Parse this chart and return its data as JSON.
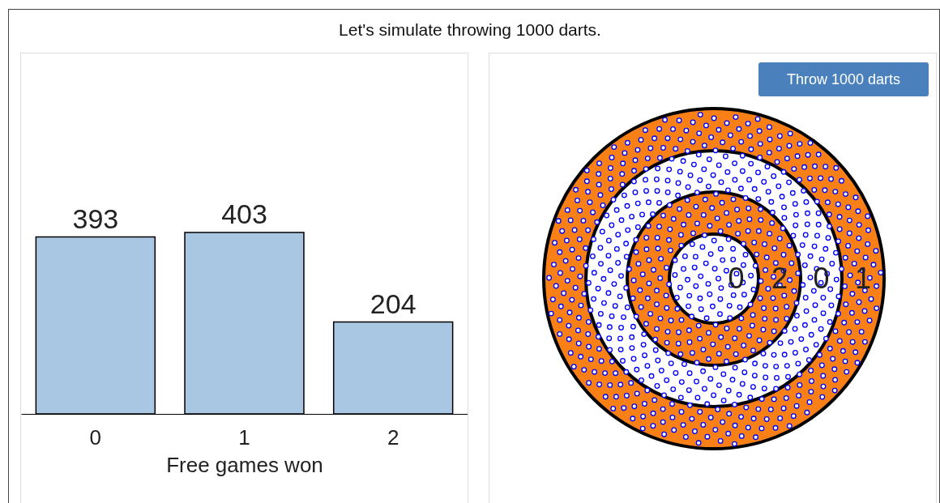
{
  "chart_data": [
    {
      "type": "bar",
      "title": "Let's simulate throwing 1000 darts.",
      "xlabel": "Free games won",
      "categories": [
        "0",
        "1",
        "2"
      ],
      "values": [
        393,
        403,
        204
      ],
      "color": "#a9c6e2",
      "data_labels": true,
      "tick_labels": "x"
    },
    {
      "type": "other",
      "annotations": [
        "Throw 1000 darts",
        "0",
        "2",
        "0",
        "1"
      ]
    }
  ]
}
